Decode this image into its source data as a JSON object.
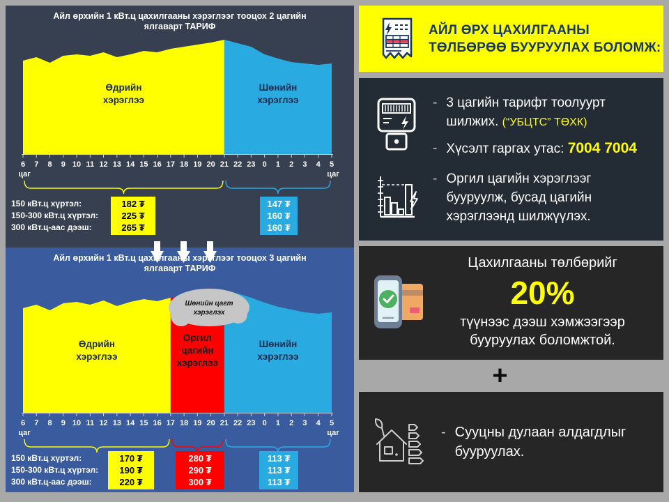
{
  "colors": {
    "accent_yellow": "#ffff00",
    "chart_day": "#ffff00",
    "chart_night": "#29abe2",
    "chart_peak": "#ff0000",
    "header_text": "#17365d",
    "left_top_panel_bg": "#374050",
    "left_bottom_panel_bg": "#3a5c9e",
    "right_panel_bg": "#262626"
  },
  "chart_data": [
    {
      "type": "area",
      "title": "Айл өрхийн 1 кВт.ц цахилгааны хэрэглээг тооцох 2 цагийн\nялгаварт ТАРИФ",
      "panel_bg": "#374050",
      "x_unit_label": "цаг",
      "x_tick_labels": [
        "6",
        "7",
        "8",
        "9",
        "10",
        "11",
        "12",
        "13",
        "14",
        "15",
        "16",
        "17",
        "18",
        "19",
        "20",
        "21",
        "22",
        "23",
        "0",
        "1",
        "2",
        "3",
        "4",
        "5"
      ],
      "profile": [
        134,
        139,
        131,
        141,
        143,
        141,
        146,
        139,
        143,
        148,
        146,
        151,
        154,
        157,
        160,
        164,
        159,
        154,
        143,
        137,
        132,
        130,
        128,
        130
      ],
      "bands": [
        {
          "label_lines": [
            "Өдрийн",
            "хэрэглээ"
          ],
          "color": "#ffff00",
          "label_color": "#1c2b4a",
          "from": 0,
          "to": 15
        },
        {
          "label_lines": [
            "Шөнийн",
            "хэрэглээ"
          ],
          "color": "#29abe2",
          "label_color": "#1c2b4a",
          "from": 15,
          "to": 23
        }
      ],
      "tariff_row_labels": [
        "150 кВт.ц хүртэл:",
        "150-300 кВт.ц хүртэл:",
        "300 кВт.ц-аас дээш:"
      ],
      "tariff_columns": [
        {
          "values": [
            "182 ₮",
            "225 ₮",
            "265 ₮"
          ],
          "bg": "#ffff00",
          "fg": "#000000"
        },
        {
          "values": [
            "147 ₮",
            "160 ₮",
            "160 ₮"
          ],
          "bg": "#29abe2",
          "fg": "#ffffff"
        }
      ]
    },
    {
      "type": "area",
      "title": "Айл өрхийн 1 кВт.ц цахилгааны хэрэглээг тооцох 3 цагийн\nялгаварт ТАРИФ",
      "panel_bg": "#3a5c9e",
      "x_unit_label": "цаг",
      "x_tick_labels": [
        "6",
        "7",
        "8",
        "9",
        "10",
        "11",
        "12",
        "13",
        "14",
        "15",
        "16",
        "17",
        "18",
        "19",
        "20",
        "21",
        "22",
        "23",
        "0",
        "1",
        "2",
        "3",
        "4",
        "5"
      ],
      "profile": [
        150,
        155,
        147,
        157,
        159,
        155,
        161,
        153,
        159,
        163,
        160,
        165,
        167,
        170,
        173,
        175,
        171,
        165,
        158,
        152,
        148,
        144,
        142,
        144
      ],
      "bands": [
        {
          "label_lines": [
            "Өдрийн",
            "хэрэглээ"
          ],
          "color": "#ffff00",
          "label_color": "#1c2b4a",
          "from": 0,
          "to": 11
        },
        {
          "label_lines": [
            "Оргил",
            "цагийн",
            "хэрэглээ"
          ],
          "color": "#ff0000",
          "label_color": "#1a1a1a",
          "from": 11,
          "to": 15
        },
        {
          "label_lines": [
            "Шөнийн",
            "хэрэглээ"
          ],
          "color": "#29abe2",
          "label_color": "#1c2b4a",
          "from": 15,
          "to": 23
        }
      ],
      "callout": {
        "lines": [
          "Шөнийн цагт",
          "хэрэглэх"
        ],
        "bg": "#c6c6c6",
        "fg": "#111111"
      },
      "tariff_row_labels": [
        "150 кВт.ц хүртэл:",
        "150-300 кВт.ц хүртэл:",
        "300 кВт.ц-аас дээш:"
      ],
      "tariff_columns": [
        {
          "values": [
            "170 ₮",
            "190 ₮",
            "220 ₮"
          ],
          "bg": "#ffff00",
          "fg": "#000000"
        },
        {
          "values": [
            "280 ₮",
            "290 ₮",
            "300 ₮"
          ],
          "bg": "#ff0000",
          "fg": "#ffffff"
        },
        {
          "values": [
            "113 ₮",
            "113 ₮",
            "113 ₮"
          ],
          "bg": "#29abe2",
          "fg": "#ffffff"
        }
      ]
    }
  ],
  "right": {
    "dash": "-",
    "header": {
      "line1": "АЙЛ ӨРХ ЦАХИЛГААНЫ",
      "line2": "ТӨЛБӨРӨӨ БУУРУУЛАХ БОЛОМЖ:"
    },
    "panel1": {
      "item1_text": "3 цагийн тарифт тоолуурт шилжих. ",
      "item1_note": "(“УБЦТС” ТӨХК)",
      "item2_label": "Хүсэлт гаргах утас: ",
      "item2_phone": "7004 7004",
      "item3_text": "Оргил цагийн хэрэглээг бууруулж, бусад цагийн хэрэглээнд шилжүүлэх."
    },
    "panel2": {
      "line1": "Цахилгааны төлбөрийг",
      "percent": "20%",
      "line2": "түүнээс дээш хэмжээгээр бууруулах боломжтой."
    },
    "plus": "+",
    "panel3": {
      "text": "Сууцны дулаан алдагдлыг бууруулах."
    }
  }
}
